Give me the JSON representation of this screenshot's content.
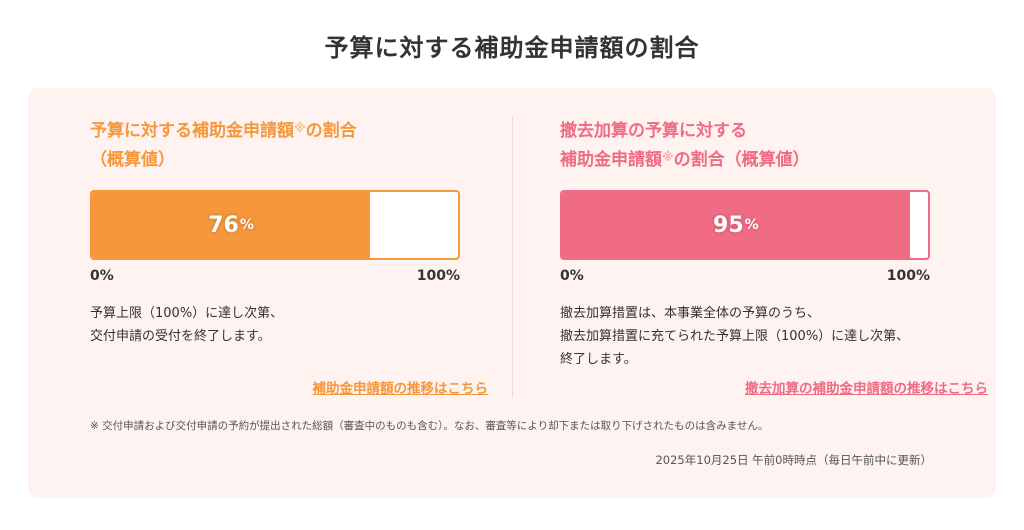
{
  "page": {
    "title": "予算に対する補助金申請額の割合"
  },
  "left_card": {
    "title_line1": "予算に対する補助金申請額",
    "title_note": "※",
    "title_line1_suffix": "の割合",
    "title_line2": "（概算値）",
    "progress_percent": 76,
    "progress_value": "76",
    "progress_unit": "%",
    "scale_min": "0%",
    "scale_max": "100%",
    "desc_line1": "予算上限（100%）に達し次第、",
    "desc_line2": "交付申請の受付を終了します。",
    "link_label": "補助金申請額の推移はこちら",
    "accent_color": "#f5973a"
  },
  "right_card": {
    "title_line1": "撤去加算の予算に対する",
    "title_line2_prefix": "補助金申請額",
    "title_note": "※",
    "title_line2_suffix": "の割合（概算値）",
    "progress_percent": 95,
    "progress_value": "95",
    "progress_unit": "%",
    "scale_min": "0%",
    "scale_max": "100%",
    "desc_line1": "撤去加算措置は、本事業全体の予算のうち、",
    "desc_line2": "撤去加算措置に充てられた予算上限（100%）に達し次第、",
    "desc_line3": "終了します。",
    "link_label": "撤去加算の補助金申請額の推移はこちら",
    "accent_color": "#f06b84"
  },
  "footnote": "※ 交付申請および交付申請の予約が提出された総額（審査中のものも含む）。なお、審査等により却下または取り下げされたものは含みません。",
  "timestamp": "2025年10月25日 午前0時時点（毎日午前中に更新）"
}
